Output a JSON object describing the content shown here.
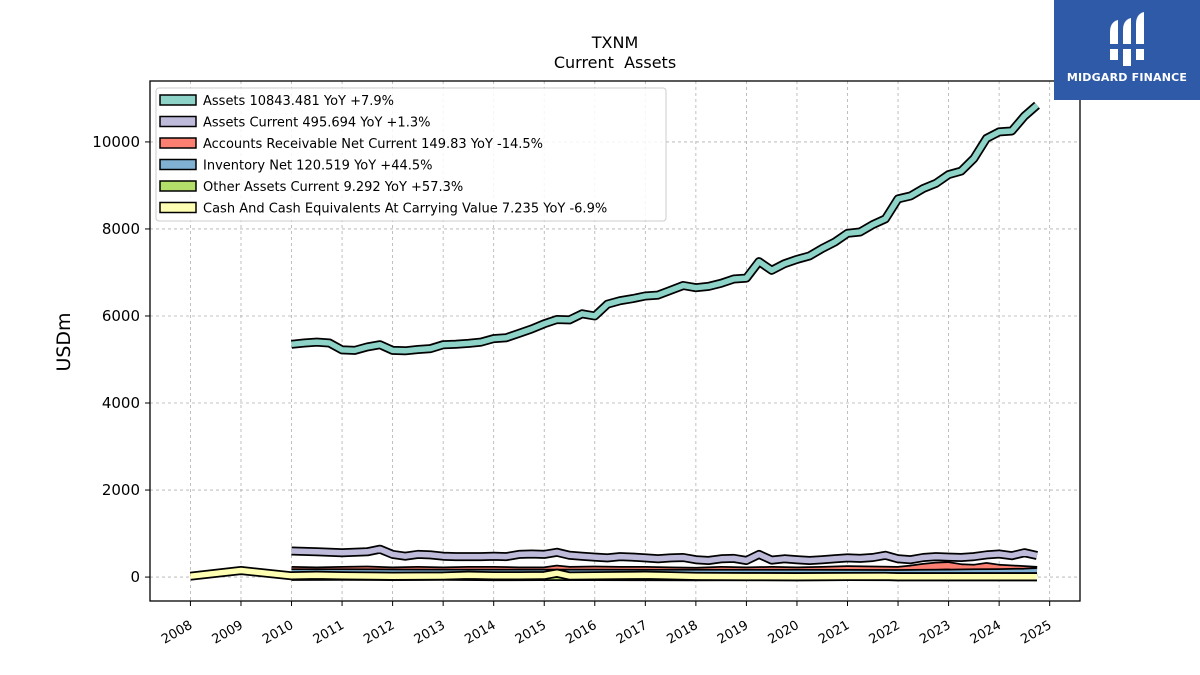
{
  "brand": {
    "name": "MIDGARD FINANCE",
    "bg_color": "#2f5aa8"
  },
  "chart_data": {
    "type": "area",
    "title": "TXNM",
    "subtitle": "Current  Assets",
    "xlabel": "",
    "ylabel": "USDm",
    "xlim": [
      2007.2,
      2025.6
    ],
    "ylim": [
      -550,
      11400
    ],
    "x_ticks": [
      "2008",
      "2009",
      "2010",
      "2011",
      "2012",
      "2013",
      "2014",
      "2015",
      "2016",
      "2017",
      "2018",
      "2019",
      "2020",
      "2021",
      "2022",
      "2023",
      "2024",
      "2025"
    ],
    "y_ticks": [
      0,
      2000,
      4000,
      6000,
      8000,
      10000
    ],
    "y_tick_labels": [
      "0",
      "2000",
      "4000",
      "6000",
      "8000",
      "10000"
    ],
    "grid": true,
    "legend_position": "upper-left",
    "series": [
      {
        "name": "Assets",
        "legend": "Assets  10843.481 YoY +7.9%",
        "color": "#8dd3c7",
        "x": [
          2010.0,
          2010.25,
          2010.5,
          2010.75,
          2011.0,
          2011.25,
          2011.5,
          2011.75,
          2012.0,
          2012.25,
          2012.5,
          2012.75,
          2013.0,
          2013.25,
          2013.5,
          2013.75,
          2014.0,
          2014.25,
          2014.5,
          2014.75,
          2015.0,
          2015.25,
          2015.5,
          2015.75,
          2016.0,
          2016.25,
          2016.5,
          2016.75,
          2017.0,
          2017.25,
          2017.5,
          2017.75,
          2018.0,
          2018.25,
          2018.5,
          2018.75,
          2019.0,
          2019.25,
          2019.5,
          2019.75,
          2020.0,
          2020.25,
          2020.5,
          2020.75,
          2021.0,
          2021.25,
          2021.5,
          2021.75,
          2022.0,
          2022.25,
          2022.5,
          2022.75,
          2023.0,
          2023.25,
          2023.5,
          2023.75,
          2024.0,
          2024.25,
          2024.5,
          2024.75
        ],
        "values": [
          5350,
          5380,
          5400,
          5380,
          5220,
          5210,
          5290,
          5340,
          5210,
          5200,
          5230,
          5250,
          5340,
          5350,
          5370,
          5400,
          5480,
          5500,
          5600,
          5700,
          5820,
          5920,
          5910,
          6050,
          6000,
          6270,
          6350,
          6400,
          6460,
          6480,
          6590,
          6700,
          6650,
          6680,
          6750,
          6850,
          6870,
          7250,
          7050,
          7200,
          7300,
          7380,
          7550,
          7700,
          7900,
          7930,
          8100,
          8230,
          8690,
          8760,
          8930,
          9050,
          9250,
          9330,
          9620,
          10080,
          10230,
          10250,
          10590,
          10843
        ]
      },
      {
        "name": "Assets Current",
        "legend": "Assets Current  495.694 YoY +1.3%",
        "color": "#bebada",
        "x": [
          2010.0,
          2010.5,
          2011.0,
          2011.5,
          2011.75,
          2012.0,
          2012.25,
          2012.5,
          2012.75,
          2013.0,
          2013.25,
          2013.5,
          2013.75,
          2014.0,
          2014.25,
          2014.5,
          2014.75,
          2015.0,
          2015.25,
          2015.5,
          2015.75,
          2016.0,
          2016.25,
          2016.5,
          2016.75,
          2017.0,
          2017.25,
          2017.5,
          2017.75,
          2018.0,
          2018.25,
          2018.5,
          2018.75,
          2019.0,
          2019.25,
          2019.5,
          2019.75,
          2020.0,
          2020.25,
          2020.5,
          2020.75,
          2021.0,
          2021.25,
          2021.5,
          2021.75,
          2022.0,
          2022.25,
          2022.5,
          2022.75,
          2023.0,
          2023.25,
          2023.5,
          2023.75,
          2024.0,
          2024.25,
          2024.5,
          2024.75
        ],
        "values": [
          600,
          580,
          560,
          580,
          640,
          520,
          480,
          520,
          510,
          480,
          470,
          470,
          470,
          480,
          470,
          520,
          530,
          520,
          570,
          500,
          480,
          460,
          440,
          470,
          460,
          440,
          420,
          440,
          450,
          400,
          380,
          420,
          430,
          380,
          520,
          390,
          420,
          400,
          380,
          400,
          420,
          440,
          430,
          450,
          500,
          420,
          400,
          450,
          470,
          460,
          450,
          470,
          510,
          530,
          490,
          560,
          495.694
        ]
      },
      {
        "name": "Accounts Receivable Net Current",
        "legend": "Accounts Receivable Net Current  149.83 YoY -14.5%",
        "color": "#fb8072",
        "x": [
          2010.0,
          2010.5,
          2011.0,
          2011.5,
          2012.0,
          2012.5,
          2013.0,
          2013.5,
          2014.0,
          2014.5,
          2015.0,
          2015.25,
          2015.5,
          2016.0,
          2016.5,
          2017.0,
          2017.5,
          2018.0,
          2018.5,
          2019.0,
          2019.5,
          2020.0,
          2020.5,
          2021.0,
          2021.5,
          2022.0,
          2022.25,
          2022.5,
          2022.75,
          2023.0,
          2023.25,
          2023.5,
          2023.75,
          2024.0,
          2024.5,
          2024.75
        ],
        "values": [
          150,
          140,
          150,
          160,
          140,
          150,
          140,
          150,
          150,
          140,
          140,
          180,
          150,
          160,
          150,
          150,
          140,
          130,
          150,
          140,
          150,
          140,
          150,
          170,
          160,
          150,
          180,
          220,
          250,
          260,
          210,
          200,
          240,
          200,
          170,
          149.83
        ]
      },
      {
        "name": "Inventory Net",
        "legend": "Inventory Net  120.519 YoY +44.5%",
        "color": "#80b1d3",
        "x": [
          2010.0,
          2011.0,
          2012.0,
          2013.0,
          2014.0,
          2015.0,
          2016.0,
          2017.0,
          2018.0,
          2019.0,
          2020.0,
          2021.0,
          2022.0,
          2022.5,
          2023.0,
          2023.5,
          2024.0,
          2024.5,
          2024.75
        ],
        "values": [
          95,
          95,
          92,
          90,
          90,
          88,
          88,
          85,
          85,
          85,
          84,
          82,
          80,
          85,
          90,
          95,
          100,
          110,
          120.519
        ]
      },
      {
        "name": "Other Assets Current",
        "legend": "Other Assets Current  9.292 YoY +57.3%",
        "color": "#b3de69",
        "x": [
          2010.0,
          2011.0,
          2012.0,
          2013.0,
          2014.0,
          2015.0,
          2016.0,
          2017.0,
          2018.0,
          2019.0,
          2020.0,
          2021.0,
          2022.0,
          2023.0,
          2024.0,
          2024.75
        ],
        "values": [
          15,
          20,
          12,
          18,
          10,
          14,
          12,
          10,
          8,
          10,
          9,
          12,
          8,
          7,
          6,
          9.292
        ]
      },
      {
        "name": "Cash And Cash Equivalents At Carrying Value",
        "legend": "Cash And Cash Equivalents At Carrying Value  7.235 YoY -6.9%",
        "color": "#ffffb3",
        "x": [
          2008.0,
          2009.0,
          2010.0,
          2010.5,
          2011.0,
          2012.0,
          2013.0,
          2013.5,
          2014.0,
          2014.5,
          2015.0,
          2015.25,
          2015.5,
          2016.0,
          2016.5,
          2017.0,
          2017.5,
          2018.0,
          2019.0,
          2020.0,
          2021.0,
          2021.75,
          2022.0,
          2023.0,
          2024.0,
          2024.75
        ],
        "values": [
          20,
          150,
          30,
          40,
          30,
          20,
          25,
          40,
          30,
          30,
          35,
          90,
          25,
          30,
          35,
          40,
          30,
          15,
          10,
          8,
          12,
          15,
          5,
          6,
          7,
          7.235
        ]
      }
    ]
  }
}
